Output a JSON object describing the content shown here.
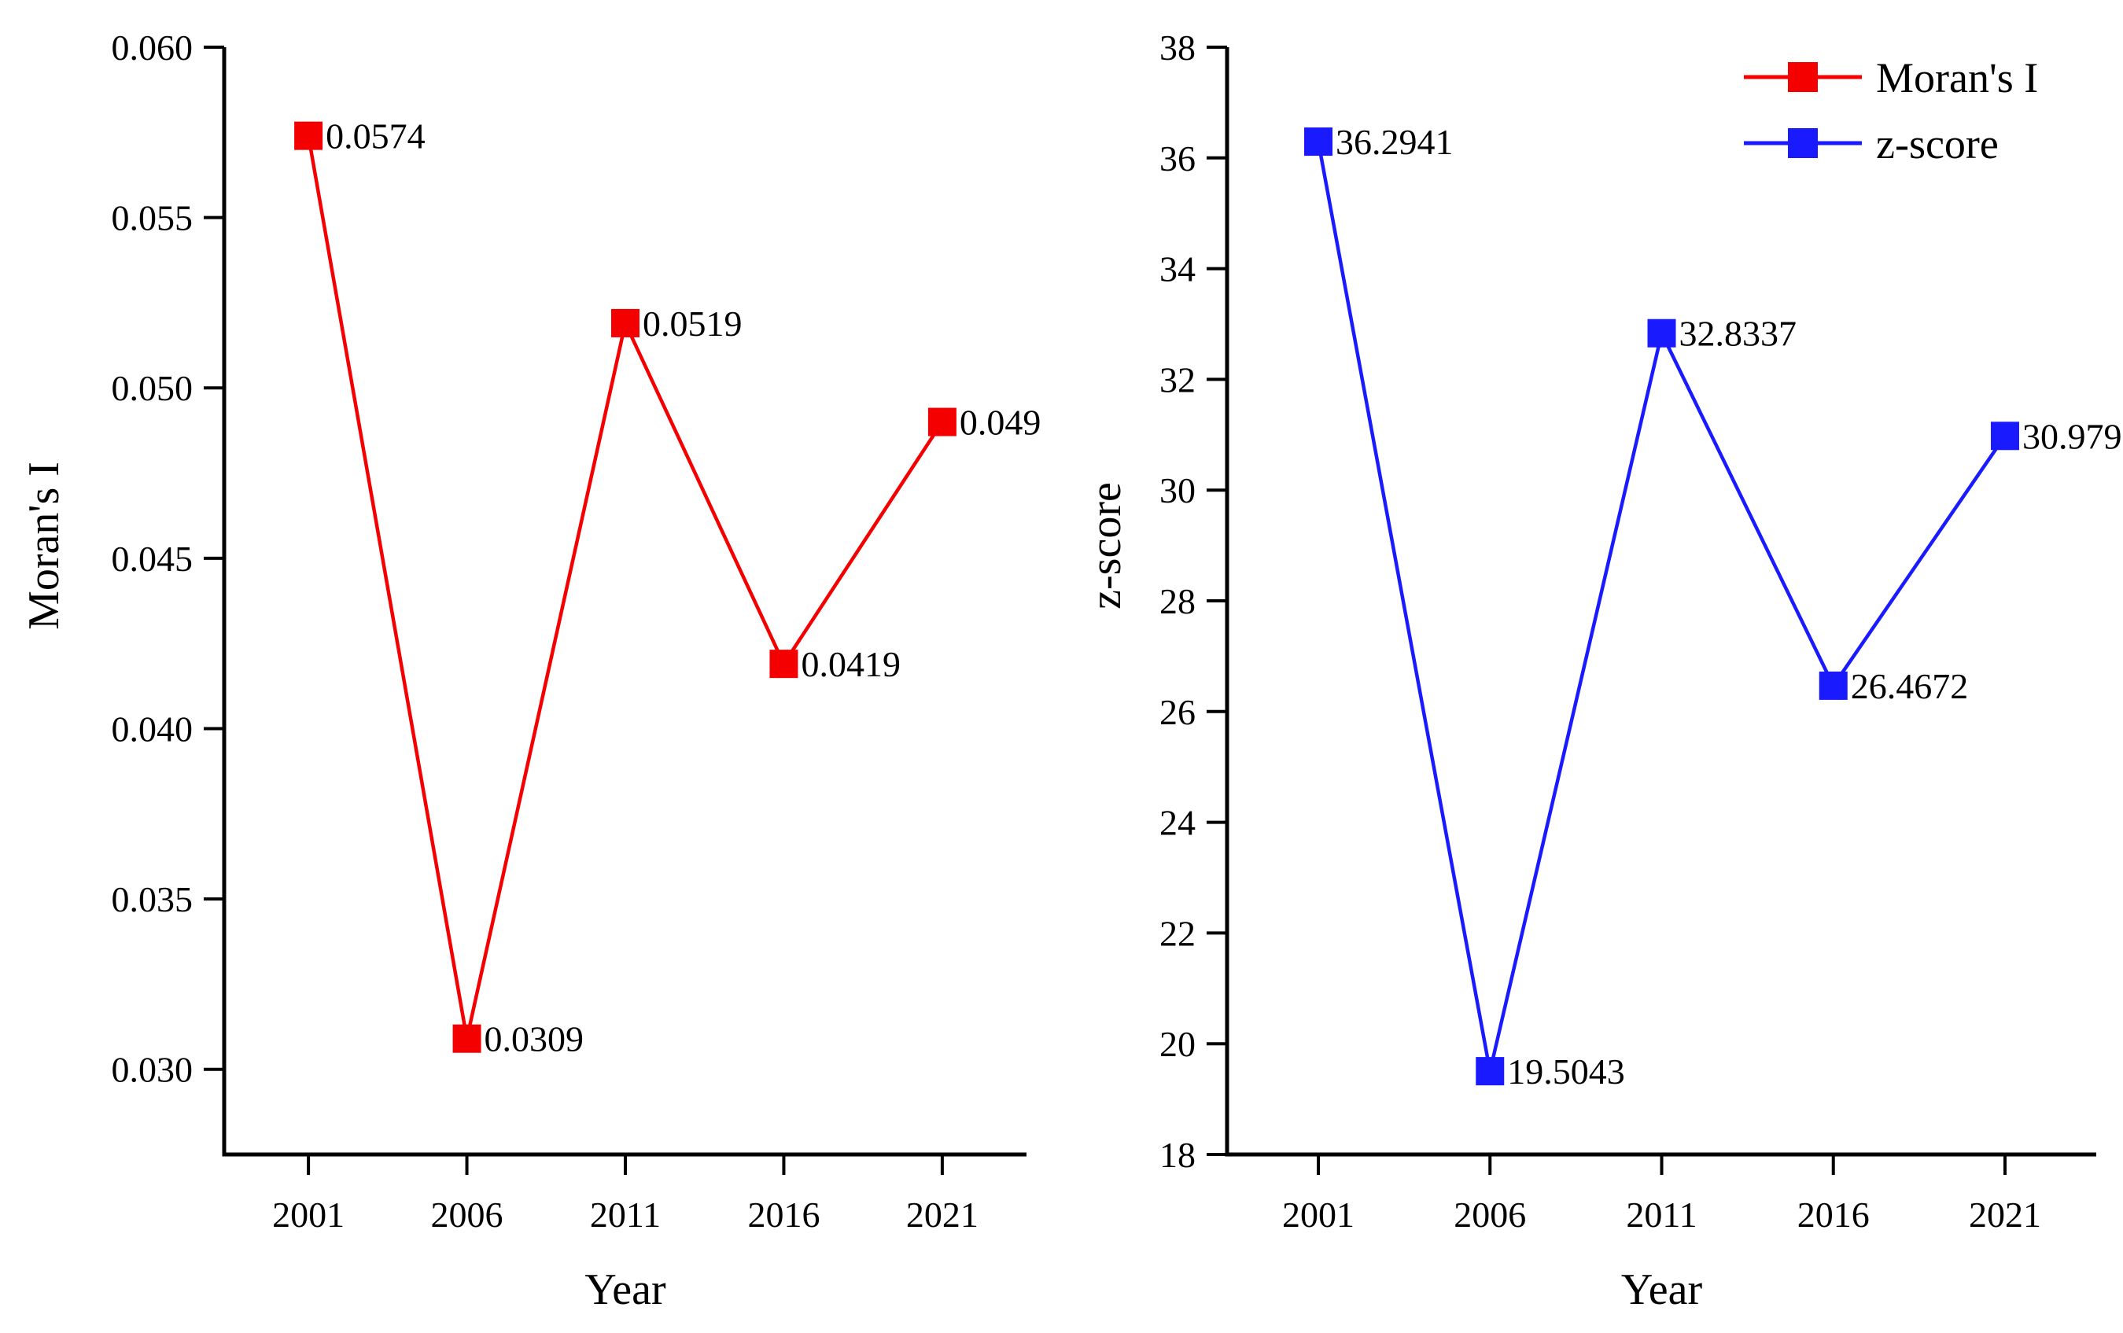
{
  "figure": {
    "background": "#ffffff",
    "text_color": "#000000",
    "axis_color": "#000000"
  },
  "legend": {
    "position": "top-right",
    "entries": [
      {
        "label": "Moran's I",
        "color": "#f40000"
      },
      {
        "label": "z-score",
        "color": "#1a1aff"
      }
    ]
  },
  "chart_data": [
    {
      "type": "line",
      "panel": "left",
      "title": "",
      "xlabel": "Year",
      "ylabel": "Moran's I",
      "categories": [
        "2001",
        "2006",
        "2011",
        "2016",
        "2021"
      ],
      "series": [
        {
          "name": "Moran's I",
          "color": "#f40000",
          "marker": "square",
          "values": [
            0.0574,
            0.0309,
            0.0519,
            0.0419,
            0.049
          ],
          "point_labels": [
            "0.0574",
            "0.0309",
            "0.0519",
            "0.0419",
            "0.049"
          ]
        }
      ],
      "ylim": [
        0.0275,
        0.06
      ],
      "yticks": [
        0.03,
        0.035,
        0.04,
        0.045,
        0.05,
        0.055,
        0.06
      ],
      "ytick_labels": [
        "0.030",
        "0.035",
        "0.040",
        "0.045",
        "0.050",
        "0.055",
        "0.060"
      ],
      "grid": false,
      "legend_here": false
    },
    {
      "type": "line",
      "panel": "right",
      "title": "",
      "xlabel": "Year",
      "ylabel": "z-score",
      "categories": [
        "2001",
        "2006",
        "2011",
        "2016",
        "2021"
      ],
      "series": [
        {
          "name": "z-score",
          "color": "#1a1aff",
          "marker": "square",
          "values": [
            36.2941,
            19.5043,
            32.8337,
            26.4672,
            30.979
          ],
          "point_labels": [
            "36.2941",
            "19.5043",
            "32.8337",
            "26.4672",
            "30.979"
          ]
        }
      ],
      "ylim": [
        18,
        38
      ],
      "yticks": [
        18,
        20,
        22,
        24,
        26,
        28,
        30,
        32,
        34,
        36,
        38
      ],
      "ytick_labels": [
        "18",
        "20",
        "22",
        "24",
        "26",
        "28",
        "30",
        "32",
        "34",
        "36",
        "38"
      ],
      "grid": false,
      "legend_here": true
    }
  ]
}
